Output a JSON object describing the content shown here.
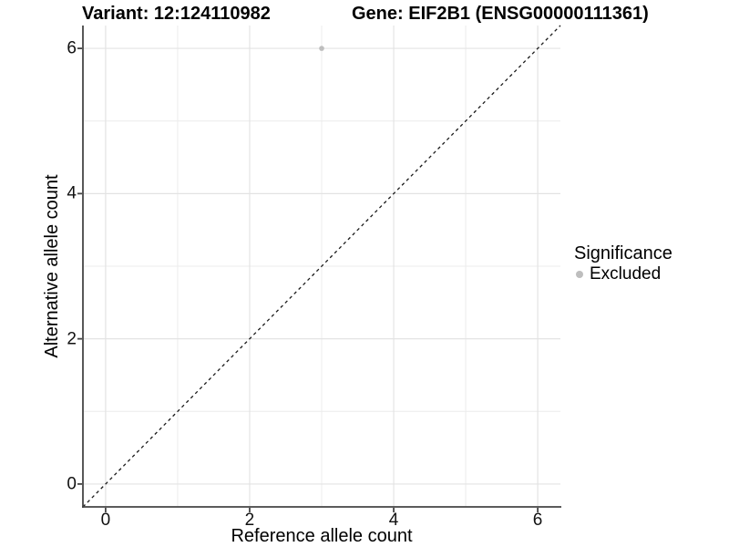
{
  "titles": {
    "variant": "Variant: 12:124110982",
    "gene": "Gene: EIF2B1 (ENSG00000111361)"
  },
  "chart_data": {
    "type": "scatter",
    "xlabel": "Reference allele count",
    "ylabel": "Alternative allele count",
    "xlim": [
      -0.315,
      6.315
    ],
    "ylim": [
      -0.315,
      6.315
    ],
    "x_ticks": [
      0,
      2,
      4,
      6
    ],
    "y_ticks": [
      0,
      2,
      4,
      6
    ],
    "x_minor_gridlines": [
      1,
      3,
      5
    ],
    "y_minor_gridlines": [
      1,
      3,
      5
    ],
    "grid": true,
    "points": [
      {
        "x": 3,
        "y": 6,
        "series": "Excluded"
      }
    ],
    "reference_line": {
      "type": "abline",
      "slope": 1,
      "intercept": 0,
      "style": "dashed"
    },
    "legend": {
      "title": "Significance",
      "position": "right",
      "items": [
        {
          "label": "Excluded",
          "color": "#bebebe"
        }
      ]
    }
  },
  "colors": {
    "point": "#bebebe",
    "grid_major": "#e3e3e3",
    "grid_minor": "#ececec",
    "axis": "#454545",
    "dashed_line": "#1a1a1a"
  }
}
